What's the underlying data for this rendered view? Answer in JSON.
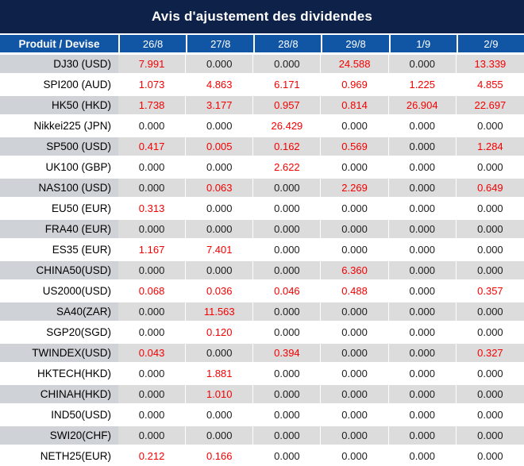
{
  "title": "Avis d'ajustement des dividendes",
  "header": {
    "product_label": "Produit / Devise",
    "dates": [
      "26/8",
      "27/8",
      "28/8",
      "29/8",
      "1/9",
      "2/9"
    ]
  },
  "zero_value": "0.000",
  "colors": {
    "title_bg": "#0d2149",
    "header_bg": "#1155a5",
    "label_row_gray": "#cfd3d7",
    "value_row_gray": "#dcdcdc",
    "zero_value_color": "#1c1c1c",
    "nonzero_value_color": "#f50000"
  },
  "chart_data": {
    "type": "table",
    "title": "Avis d'ajustement des dividendes",
    "columns": [
      "Produit / Devise",
      "26/8",
      "27/8",
      "28/8",
      "29/8",
      "1/9",
      "2/9"
    ],
    "note": "values different from 0.000 are shown in red"
  },
  "rows": [
    {
      "product": "DJ30 (USD)",
      "values": [
        "7.991",
        "0.000",
        "0.000",
        "24.588",
        "0.000",
        "13.339"
      ]
    },
    {
      "product": "SPI200 (AUD)",
      "values": [
        "1.073",
        "4.863",
        "6.171",
        "0.969",
        "1.225",
        "4.855"
      ]
    },
    {
      "product": "HK50 (HKD)",
      "values": [
        "1.738",
        "3.177",
        "0.957",
        "0.814",
        "26.904",
        "22.697"
      ]
    },
    {
      "product": "Nikkei225 (JPN)",
      "values": [
        "0.000",
        "0.000",
        "26.429",
        "0.000",
        "0.000",
        "0.000"
      ]
    },
    {
      "product": "SP500 (USD)",
      "values": [
        "0.417",
        "0.005",
        "0.162",
        "0.569",
        "0.000",
        "1.284"
      ]
    },
    {
      "product": "UK100 (GBP)",
      "values": [
        "0.000",
        "0.000",
        "2.622",
        "0.000",
        "0.000",
        "0.000"
      ]
    },
    {
      "product": "NAS100 (USD)",
      "values": [
        "0.000",
        "0.063",
        "0.000",
        "2.269",
        "0.000",
        "0.649"
      ]
    },
    {
      "product": "EU50 (EUR)",
      "values": [
        "0.313",
        "0.000",
        "0.000",
        "0.000",
        "0.000",
        "0.000"
      ]
    },
    {
      "product": "FRA40 (EUR)",
      "values": [
        "0.000",
        "0.000",
        "0.000",
        "0.000",
        "0.000",
        "0.000"
      ]
    },
    {
      "product": "ES35 (EUR)",
      "values": [
        "1.167",
        "7.401",
        "0.000",
        "0.000",
        "0.000",
        "0.000"
      ]
    },
    {
      "product": "CHINA50(USD)",
      "values": [
        "0.000",
        "0.000",
        "0.000",
        "6.360",
        "0.000",
        "0.000"
      ]
    },
    {
      "product": "US2000(USD)",
      "values": [
        "0.068",
        "0.036",
        "0.046",
        "0.488",
        "0.000",
        "0.357"
      ]
    },
    {
      "product": "SA40(ZAR)",
      "values": [
        "0.000",
        "11.563",
        "0.000",
        "0.000",
        "0.000",
        "0.000"
      ]
    },
    {
      "product": "SGP20(SGD)",
      "values": [
        "0.000",
        "0.120",
        "0.000",
        "0.000",
        "0.000",
        "0.000"
      ]
    },
    {
      "product": "TWINDEX(USD)",
      "values": [
        "0.043",
        "0.000",
        "0.394",
        "0.000",
        "0.000",
        "0.327"
      ]
    },
    {
      "product": "HKTECH(HKD)",
      "values": [
        "0.000",
        "1.881",
        "0.000",
        "0.000",
        "0.000",
        "0.000"
      ]
    },
    {
      "product": "CHINAH(HKD)",
      "values": [
        "0.000",
        "1.010",
        "0.000",
        "0.000",
        "0.000",
        "0.000"
      ]
    },
    {
      "product": "IND50(USD)",
      "values": [
        "0.000",
        "0.000",
        "0.000",
        "0.000",
        "0.000",
        "0.000"
      ]
    },
    {
      "product": "SWI20(CHF)",
      "values": [
        "0.000",
        "0.000",
        "0.000",
        "0.000",
        "0.000",
        "0.000"
      ]
    },
    {
      "product": "NETH25(EUR)",
      "values": [
        "0.212",
        "0.166",
        "0.000",
        "0.000",
        "0.000",
        "0.000"
      ]
    }
  ]
}
